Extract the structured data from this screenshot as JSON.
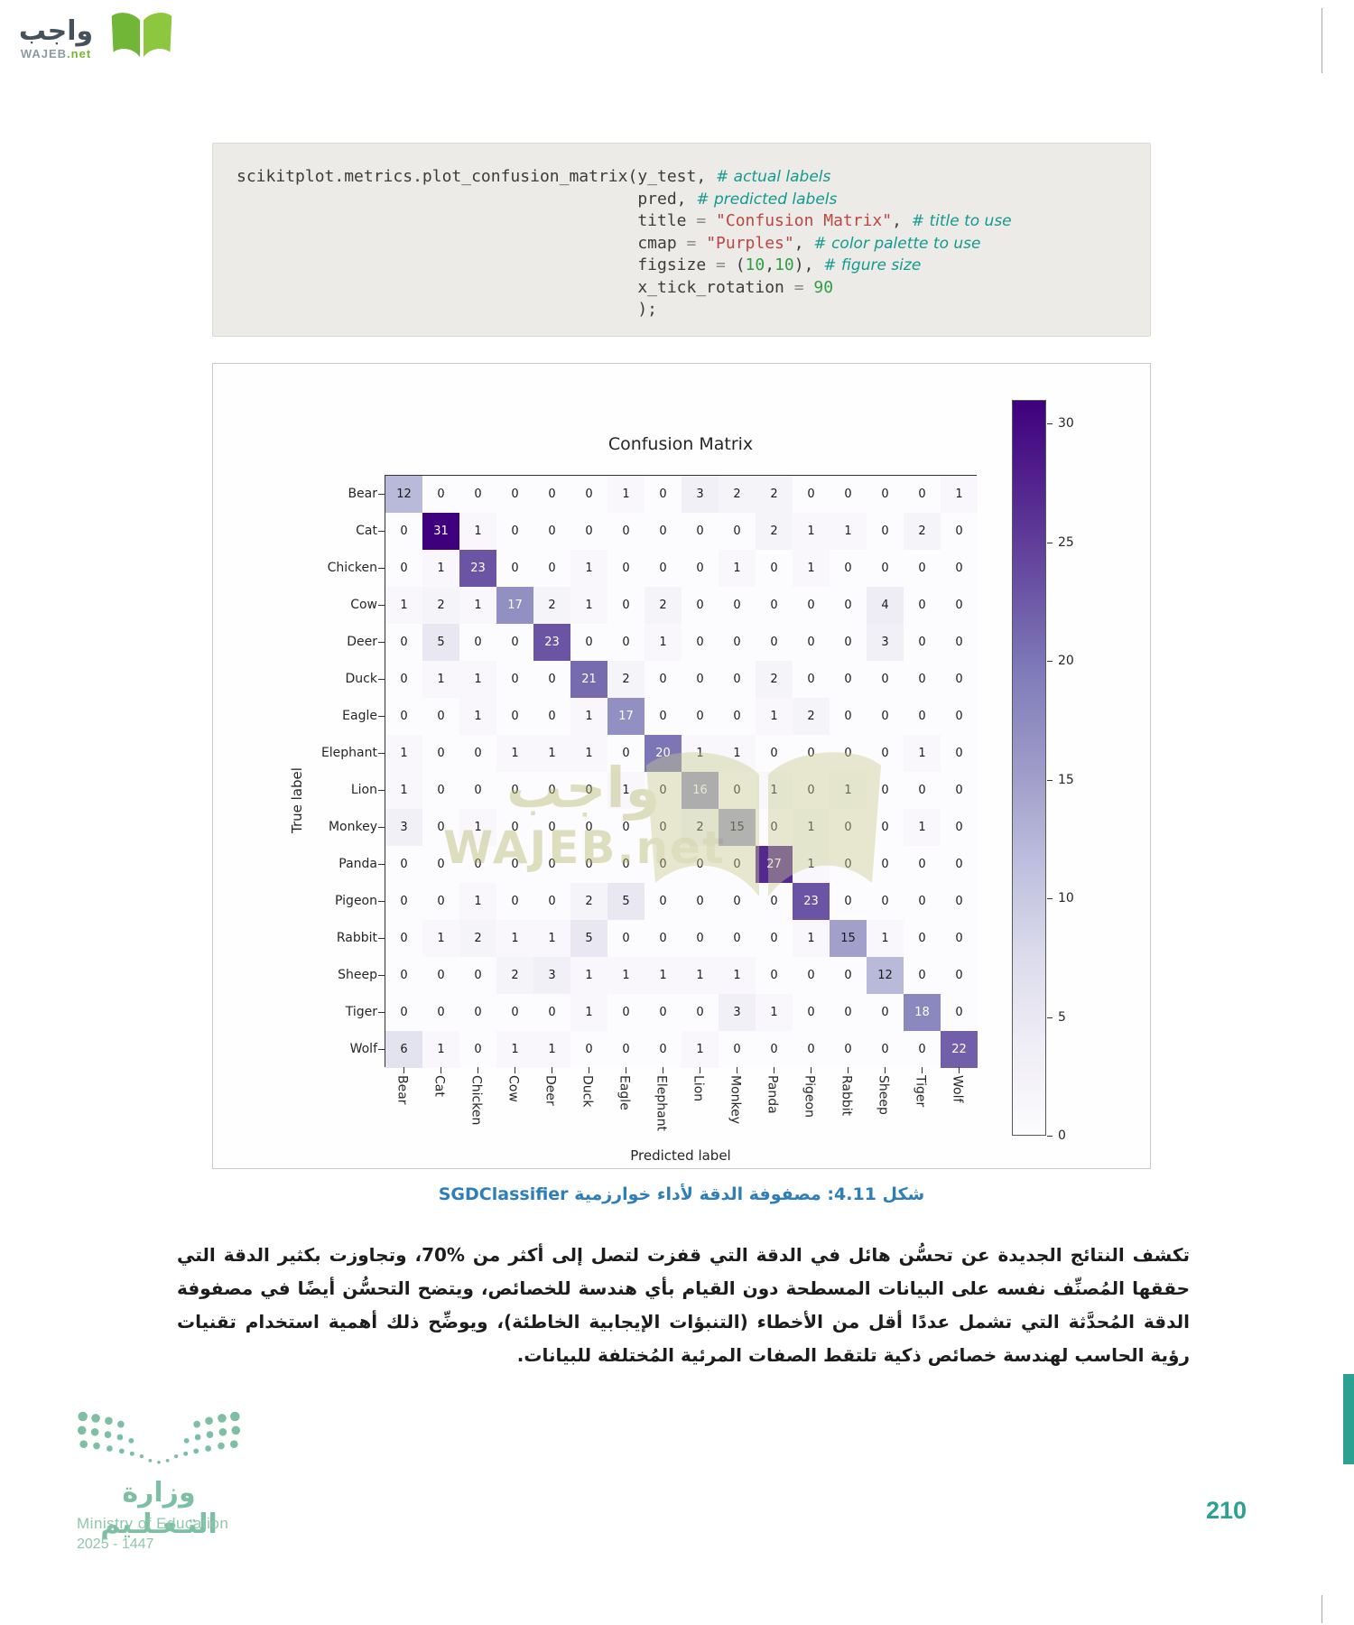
{
  "page": {
    "number": "210"
  },
  "header_logo": {
    "arabic": "واجب",
    "latin": "WAJEB",
    "domain": ".net"
  },
  "watermark": {
    "arabic": "واجب",
    "latin": "WAJEB.net"
  },
  "code_block": {
    "lines": [
      [
        {
          "t": "scikitplot.metrics.plot_confusion_matrix(y_test, "
        },
        {
          "t": "# actual labels",
          "c": "cm"
        }
      ],
      [
        {
          "t": "                                         pred, "
        },
        {
          "t": "# predicted labels",
          "c": "cm"
        }
      ],
      [
        {
          "t": "                                         title "
        },
        {
          "t": "=",
          "c": "op"
        },
        {
          "t": " "
        },
        {
          "t": "\"Confusion Matrix\"",
          "c": "st"
        },
        {
          "t": ", "
        },
        {
          "t": "# title to use",
          "c": "cm"
        }
      ],
      [
        {
          "t": "                                         cmap "
        },
        {
          "t": "=",
          "c": "op"
        },
        {
          "t": " "
        },
        {
          "t": "\"Purples\"",
          "c": "st"
        },
        {
          "t": ", "
        },
        {
          "t": "# color palette to use",
          "c": "cm"
        }
      ],
      [
        {
          "t": "                                         figsize "
        },
        {
          "t": "=",
          "c": "op"
        },
        {
          "t": " ("
        },
        {
          "t": "10",
          "c": "nu"
        },
        {
          "t": ","
        },
        {
          "t": "10",
          "c": "nu"
        },
        {
          "t": "), "
        },
        {
          "t": "# figure size",
          "c": "cm"
        }
      ],
      [
        {
          "t": "                                         x_tick_rotation "
        },
        {
          "t": "=",
          "c": "op"
        },
        {
          "t": " "
        },
        {
          "t": "90",
          "c": "nu"
        }
      ],
      [
        {
          "t": "                                         );"
        }
      ]
    ]
  },
  "figure": {
    "title": "Confusion Matrix",
    "xlabel": "Predicted label",
    "ylabel": "True label",
    "vmax": 31,
    "labels": [
      "Bear",
      "Cat",
      "Chicken",
      "Cow",
      "Deer",
      "Duck",
      "Eagle",
      "Elephant",
      "Lion",
      "Monkey",
      "Panda",
      "Pigeon",
      "Rabbit",
      "Sheep",
      "Tiger",
      "Wolf"
    ],
    "matrix": [
      [
        12,
        0,
        0,
        0,
        0,
        0,
        1,
        0,
        3,
        2,
        2,
        0,
        0,
        0,
        0,
        1
      ],
      [
        0,
        31,
        1,
        0,
        0,
        0,
        0,
        0,
        0,
        0,
        2,
        1,
        1,
        0,
        2,
        0
      ],
      [
        0,
        1,
        23,
        0,
        0,
        1,
        0,
        0,
        0,
        1,
        0,
        1,
        0,
        0,
        0,
        0
      ],
      [
        1,
        2,
        1,
        17,
        2,
        1,
        0,
        2,
        0,
        0,
        0,
        0,
        0,
        4,
        0,
        0
      ],
      [
        0,
        5,
        0,
        0,
        23,
        0,
        0,
        1,
        0,
        0,
        0,
        0,
        0,
        3,
        0,
        0
      ],
      [
        0,
        1,
        1,
        0,
        0,
        21,
        2,
        0,
        0,
        0,
        2,
        0,
        0,
        0,
        0,
        0
      ],
      [
        0,
        0,
        1,
        0,
        0,
        1,
        17,
        0,
        0,
        0,
        1,
        2,
        0,
        0,
        0,
        0
      ],
      [
        1,
        0,
        0,
        1,
        1,
        1,
        0,
        20,
        1,
        1,
        0,
        0,
        0,
        0,
        1,
        0
      ],
      [
        1,
        0,
        0,
        0,
        0,
        0,
        1,
        0,
        16,
        0,
        1,
        0,
        1,
        0,
        0,
        0
      ],
      [
        3,
        0,
        1,
        0,
        0,
        0,
        0,
        0,
        2,
        15,
        0,
        1,
        0,
        0,
        1,
        0
      ],
      [
        0,
        0,
        0,
        0,
        0,
        0,
        0,
        0,
        0,
        0,
        27,
        1,
        0,
        0,
        0,
        0
      ],
      [
        0,
        0,
        1,
        0,
        0,
        2,
        5,
        0,
        0,
        0,
        0,
        23,
        0,
        0,
        0,
        0
      ],
      [
        0,
        1,
        2,
        1,
        1,
        5,
        0,
        0,
        0,
        0,
        0,
        1,
        15,
        1,
        0,
        0
      ],
      [
        0,
        0,
        0,
        2,
        3,
        1,
        1,
        1,
        1,
        1,
        0,
        0,
        0,
        12,
        0,
        0
      ],
      [
        0,
        0,
        0,
        0,
        0,
        1,
        0,
        0,
        0,
        3,
        1,
        0,
        0,
        0,
        18,
        0
      ],
      [
        6,
        1,
        0,
        1,
        1,
        0,
        0,
        0,
        1,
        0,
        0,
        0,
        0,
        0,
        0,
        22
      ]
    ],
    "colorbar_ticks": [
      0,
      5,
      10,
      15,
      20,
      25,
      30
    ]
  },
  "chart_data": {
    "type": "heatmap",
    "title": "Confusion Matrix",
    "xlabel": "Predicted label",
    "ylabel": "True label",
    "x_categories": [
      "Bear",
      "Cat",
      "Chicken",
      "Cow",
      "Deer",
      "Duck",
      "Eagle",
      "Elephant",
      "Lion",
      "Monkey",
      "Panda",
      "Pigeon",
      "Rabbit",
      "Sheep",
      "Tiger",
      "Wolf"
    ],
    "y_categories": [
      "Bear",
      "Cat",
      "Chicken",
      "Cow",
      "Deer",
      "Duck",
      "Eagle",
      "Elephant",
      "Lion",
      "Monkey",
      "Panda",
      "Pigeon",
      "Rabbit",
      "Sheep",
      "Tiger",
      "Wolf"
    ],
    "values": [
      [
        12,
        0,
        0,
        0,
        0,
        0,
        1,
        0,
        3,
        2,
        2,
        0,
        0,
        0,
        0,
        1
      ],
      [
        0,
        31,
        1,
        0,
        0,
        0,
        0,
        0,
        0,
        0,
        2,
        1,
        1,
        0,
        2,
        0
      ],
      [
        0,
        1,
        23,
        0,
        0,
        1,
        0,
        0,
        0,
        1,
        0,
        1,
        0,
        0,
        0,
        0
      ],
      [
        1,
        2,
        1,
        17,
        2,
        1,
        0,
        2,
        0,
        0,
        0,
        0,
        0,
        4,
        0,
        0
      ],
      [
        0,
        5,
        0,
        0,
        23,
        0,
        0,
        1,
        0,
        0,
        0,
        0,
        0,
        3,
        0,
        0
      ],
      [
        0,
        1,
        1,
        0,
        0,
        21,
        2,
        0,
        0,
        0,
        2,
        0,
        0,
        0,
        0,
        0
      ],
      [
        0,
        0,
        1,
        0,
        0,
        1,
        17,
        0,
        0,
        0,
        1,
        2,
        0,
        0,
        0,
        0
      ],
      [
        1,
        0,
        0,
        1,
        1,
        1,
        0,
        20,
        1,
        1,
        0,
        0,
        0,
        0,
        1,
        0
      ],
      [
        1,
        0,
        0,
        0,
        0,
        0,
        1,
        0,
        16,
        0,
        1,
        0,
        1,
        0,
        0,
        0
      ],
      [
        3,
        0,
        1,
        0,
        0,
        0,
        0,
        0,
        2,
        15,
        0,
        1,
        0,
        0,
        1,
        0
      ],
      [
        0,
        0,
        0,
        0,
        0,
        0,
        0,
        0,
        0,
        0,
        27,
        1,
        0,
        0,
        0,
        0
      ],
      [
        0,
        0,
        1,
        0,
        0,
        2,
        5,
        0,
        0,
        0,
        0,
        23,
        0,
        0,
        0,
        0
      ],
      [
        0,
        1,
        2,
        1,
        1,
        5,
        0,
        0,
        0,
        0,
        0,
        1,
        15,
        1,
        0,
        0
      ],
      [
        0,
        0,
        0,
        2,
        3,
        1,
        1,
        1,
        1,
        1,
        0,
        0,
        0,
        12,
        0,
        0
      ],
      [
        0,
        0,
        0,
        0,
        0,
        1,
        0,
        0,
        0,
        3,
        1,
        0,
        0,
        0,
        18,
        0
      ],
      [
        6,
        1,
        0,
        1,
        1,
        0,
        0,
        0,
        1,
        0,
        0,
        0,
        0,
        0,
        0,
        22
      ]
    ],
    "colormap": "Purples",
    "colorbar_range": [
      0,
      31
    ],
    "colorbar_ticks": [
      0,
      5,
      10,
      15,
      20,
      25,
      30
    ],
    "x_tick_rotation": 90
  },
  "caption": {
    "text": "شكل 4.11: مصفوفة الدقة لأداء خوارزمية SGDClassifier"
  },
  "paragraph": {
    "text": "تكشف النتائج الجديدة عن تحسُّن هائل في الدقة التي قفزت لتصل إلى أكثر من %70، وتجاوزت بكثير الدقة التي حققها المُصنِّف نفسه على البيانات المسطحة دون القيام بأي هندسة للخصائص، ويتضح التحسُّن أيضًا في مصفوفة الدقة المُحدَّثة التي تشمل عددًا أقل من الأخطاء (التنبؤات الإيجابية الخاطئة)، ويوضِّح ذلك أهمية استخدام تقنيات رؤية الحاسب لهندسة خصائص ذكية تلتقط الصفات المرئية المُختلفة للبيانات."
  },
  "ministry": {
    "arabic": "وزارة التـعـلـيم",
    "english": "Ministry of Education",
    "years": "2025 - 1447"
  },
  "colors": {
    "caption_blue": "#2e7eb8",
    "comment_teal": "#13998e",
    "string_red": "#bb4642",
    "number_green": "#2f9e44",
    "ministry_green": "#7dbfa4",
    "page_number_teal": "#2aa191",
    "heatmap_dark": "#3f007d",
    "heatmap_light": "#fcfbfd"
  }
}
